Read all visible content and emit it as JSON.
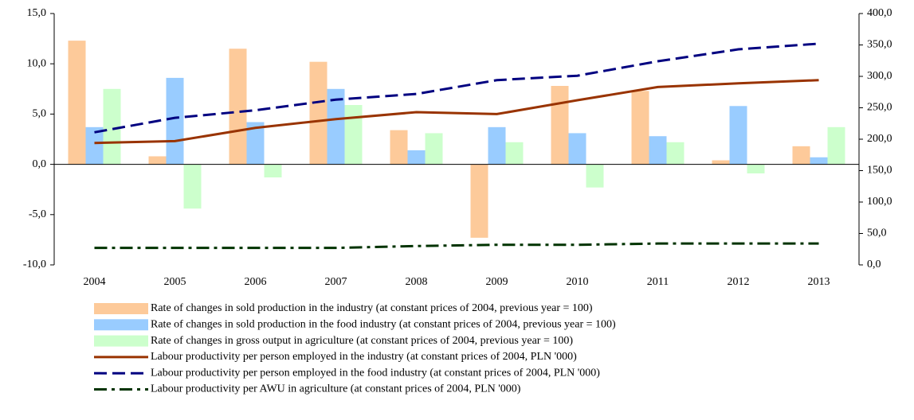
{
  "chart_data": {
    "type": "bar_line",
    "categories": [
      "2004",
      "2005",
      "2006",
      "2007",
      "2008",
      "2009",
      "2010",
      "2011",
      "2012",
      "2013"
    ],
    "ylim": [
      -10,
      15
    ],
    "yticks": [
      {
        "value": -10,
        "label": "-10,0"
      },
      {
        "value": -5,
        "label": "-5,0"
      },
      {
        "value": 0,
        "label": "0,0"
      },
      {
        "value": 5,
        "label": "5,0"
      },
      {
        "value": 10,
        "label": "10,0"
      },
      {
        "value": 15,
        "label": "15,0"
      }
    ],
    "y2lim": [
      0,
      400
    ],
    "y2ticks": [
      {
        "value": 0,
        "label": "0,0"
      },
      {
        "value": 50,
        "label": "50,0"
      },
      {
        "value": 100,
        "label": "100,0"
      },
      {
        "value": 150,
        "label": "150,0"
      },
      {
        "value": 200,
        "label": "200,0"
      },
      {
        "value": 250,
        "label": "250,0"
      },
      {
        "value": 300,
        "label": "300,0"
      },
      {
        "value": 350,
        "label": "350,0"
      },
      {
        "value": 400,
        "label": "400,0"
      }
    ],
    "legend": "bottom",
    "series": [
      {
        "name": "Rate of changes in sold production in the industry (at constant prices of 2004, previous year = 100)",
        "type": "bar",
        "color": "#fdca9a",
        "values": [
          12.3,
          0.8,
          11.5,
          10.2,
          3.4,
          -7.3,
          7.8,
          7.3,
          0.4,
          1.8
        ]
      },
      {
        "name": "Rate of changes in sold production in the food industry (at constant prices of 2004, previous year = 100)",
        "type": "bar",
        "color": "#99ccff",
        "values": [
          3.7,
          8.6,
          4.2,
          7.5,
          1.4,
          3.7,
          3.1,
          2.8,
          5.8,
          0.7
        ]
      },
      {
        "name": "Rate of changes in gross output in agriculture (at constant prices of 2004, previous year = 100)",
        "type": "bar",
        "color": "#ccffcc",
        "values": [
          7.5,
          -4.4,
          -1.3,
          5.9,
          3.1,
          2.2,
          -2.3,
          2.2,
          -0.9,
          3.7
        ]
      },
      {
        "name": "Labour productivity per person employed in the industry (at constant prices of 2004, PLN '000)",
        "type": "line",
        "axis": "y2",
        "color": "#993300",
        "dash": "solid",
        "values": [
          194,
          197,
          218,
          232,
          243,
          240,
          262,
          283,
          289,
          294
        ]
      },
      {
        "name": "Labour productivity per person employed in the food industry (at constant prices of 2004, PLN '000)",
        "type": "line",
        "axis": "y2",
        "color": "#000080",
        "dash": "dashed",
        "values": [
          211,
          234,
          246,
          263,
          272,
          294,
          301,
          324,
          343,
          352
        ]
      },
      {
        "name": "Labour productivity per AWU in agriculture (at constant prices of 2004, PLN '000)",
        "type": "line",
        "axis": "y2",
        "color": "#003300",
        "dash": "dashdot",
        "values": [
          27,
          27,
          27,
          27,
          30,
          32,
          32,
          34,
          34,
          34
        ]
      }
    ]
  }
}
